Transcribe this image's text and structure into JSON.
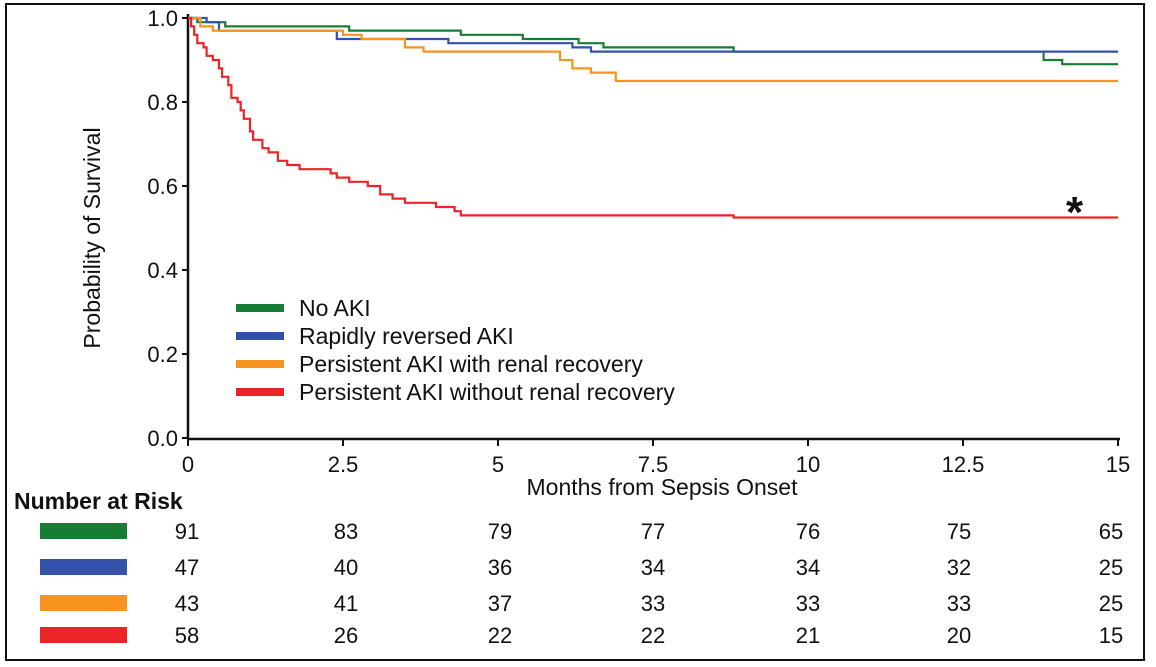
{
  "colors": {
    "no_aki": "#177d34",
    "rapid": "#3451a9",
    "persist_recovery": "#f7931f",
    "persist_no_recovery": "#ea2427",
    "axis": "#111111",
    "frame": "#111111"
  },
  "chart_data": {
    "type": "line",
    "step": true,
    "title": "",
    "xlabel": "Months from Sepsis Onset",
    "ylabel": "Probability of Survival",
    "xlim": [
      0,
      15
    ],
    "ylim": [
      0,
      1
    ],
    "x_ticks": [
      0,
      2.5,
      5,
      7.5,
      10,
      12.5,
      15
    ],
    "x_tick_labels": [
      "0",
      "2.5",
      "5",
      "7.5",
      "10",
      "12.5",
      "15"
    ],
    "y_ticks": [
      0,
      0.2,
      0.4,
      0.6,
      0.8,
      1.0
    ],
    "y_tick_labels": [
      "0.0",
      "0.2",
      "0.4",
      "0.6",
      "0.8",
      "1.0"
    ],
    "grid": false,
    "legend_position": "lower-left",
    "annotation": {
      "text": "*",
      "x": 14.3,
      "y": 0.56
    },
    "series": [
      {
        "name": "No AKI",
        "color_key": "no_aki",
        "points": [
          [
            0,
            1.0
          ],
          [
            0.15,
            0.99
          ],
          [
            0.6,
            0.98
          ],
          [
            2.6,
            0.97
          ],
          [
            4.4,
            0.96
          ],
          [
            5.4,
            0.95
          ],
          [
            6.3,
            0.94
          ],
          [
            6.7,
            0.93
          ],
          [
            8.8,
            0.92
          ],
          [
            13.8,
            0.9
          ],
          [
            14.1,
            0.89
          ],
          [
            15,
            0.89
          ]
        ]
      },
      {
        "name": "Rapidly reversed AKI",
        "color_key": "rapid",
        "points": [
          [
            0,
            1.0
          ],
          [
            0.3,
            0.99
          ],
          [
            0.5,
            0.97
          ],
          [
            2.4,
            0.95
          ],
          [
            4.2,
            0.94
          ],
          [
            6.2,
            0.93
          ],
          [
            6.5,
            0.92
          ],
          [
            15,
            0.92
          ]
        ]
      },
      {
        "name": "Persistent AKI with renal recovery",
        "color_key": "persist_recovery",
        "points": [
          [
            0,
            1.0
          ],
          [
            0.2,
            0.98
          ],
          [
            0.4,
            0.97
          ],
          [
            2.5,
            0.96
          ],
          [
            2.8,
            0.95
          ],
          [
            3.5,
            0.93
          ],
          [
            3.8,
            0.92
          ],
          [
            6.0,
            0.9
          ],
          [
            6.2,
            0.88
          ],
          [
            6.5,
            0.87
          ],
          [
            6.9,
            0.85
          ],
          [
            15,
            0.85
          ]
        ]
      },
      {
        "name": "Persistent AKI without renal recovery",
        "color_key": "persist_no_recovery",
        "points": [
          [
            0,
            1.0
          ],
          [
            0.05,
            0.98
          ],
          [
            0.1,
            0.96
          ],
          [
            0.15,
            0.94
          ],
          [
            0.25,
            0.93
          ],
          [
            0.3,
            0.91
          ],
          [
            0.4,
            0.9
          ],
          [
            0.5,
            0.88
          ],
          [
            0.55,
            0.86
          ],
          [
            0.65,
            0.84
          ],
          [
            0.7,
            0.81
          ],
          [
            0.8,
            0.8
          ],
          [
            0.85,
            0.78
          ],
          [
            0.9,
            0.76
          ],
          [
            1.0,
            0.73
          ],
          [
            1.05,
            0.71
          ],
          [
            1.2,
            0.69
          ],
          [
            1.3,
            0.68
          ],
          [
            1.45,
            0.66
          ],
          [
            1.6,
            0.65
          ],
          [
            1.8,
            0.64
          ],
          [
            2.3,
            0.63
          ],
          [
            2.4,
            0.62
          ],
          [
            2.6,
            0.61
          ],
          [
            2.9,
            0.6
          ],
          [
            3.1,
            0.58
          ],
          [
            3.3,
            0.57
          ],
          [
            3.5,
            0.56
          ],
          [
            4.0,
            0.55
          ],
          [
            4.3,
            0.54
          ],
          [
            4.4,
            0.53
          ],
          [
            8.8,
            0.525
          ],
          [
            15,
            0.525
          ]
        ]
      }
    ]
  },
  "risk_table": {
    "title": "Number at Risk",
    "rows": [
      {
        "color_key": "no_aki",
        "values": [
          "91",
          "83",
          "79",
          "77",
          "76",
          "75",
          "65"
        ]
      },
      {
        "color_key": "rapid",
        "values": [
          "47",
          "40",
          "36",
          "34",
          "34",
          "32",
          "25"
        ]
      },
      {
        "color_key": "persist_recovery",
        "values": [
          "43",
          "41",
          "37",
          "33",
          "33",
          "33",
          "25"
        ]
      },
      {
        "color_key": "persist_no_recovery",
        "values": [
          "58",
          "26",
          "22",
          "22",
          "21",
          "20",
          "15"
        ]
      }
    ]
  }
}
